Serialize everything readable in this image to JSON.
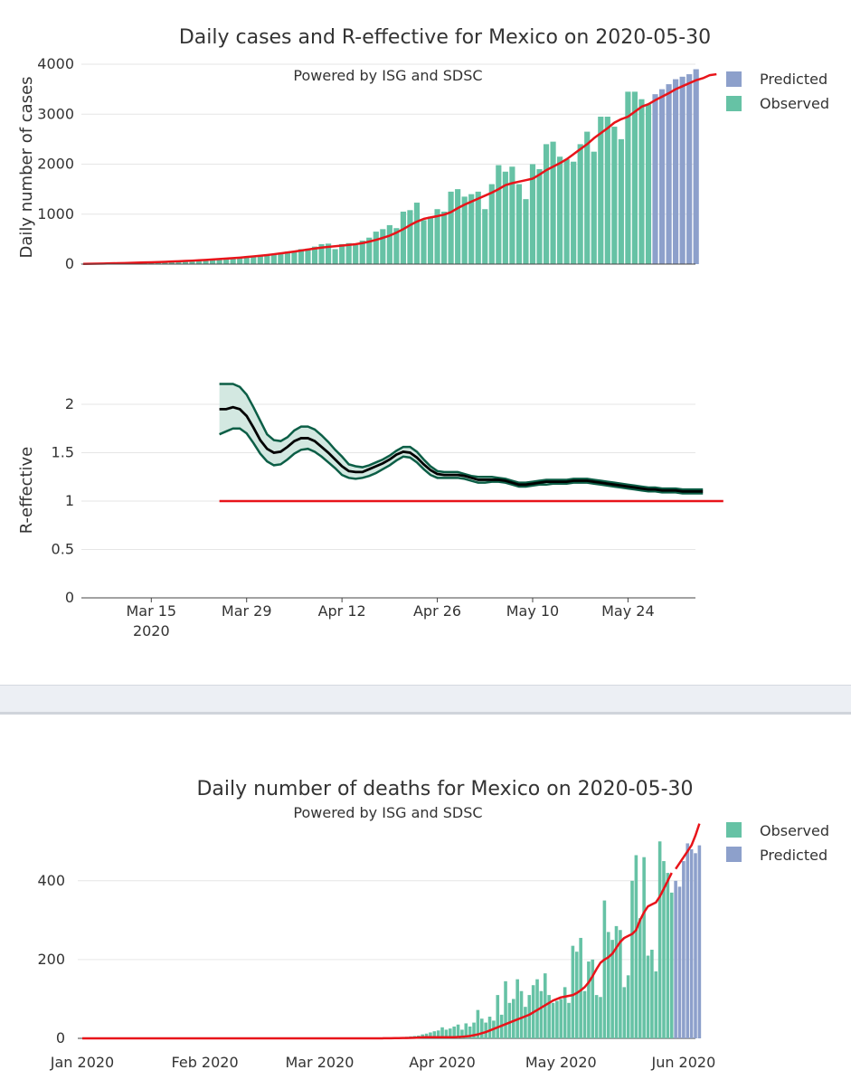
{
  "colors": {
    "observed": "#66c2a5",
    "predicted": "#8da0cb",
    "trend": "#e8141a",
    "r_line": "#000000",
    "r_band_edge": "#0c5e46",
    "r_band_fill": "#d3e8e1",
    "threshold": "#e8141a",
    "grid": "#e6e6e6"
  },
  "chart_data": [
    {
      "id": "cases",
      "type": "bar",
      "title": "Daily cases and R-effective for Mexico on 2020-05-30",
      "subtitle": "Powered by ISG and SDSC",
      "ylabel": "Daily number of cases",
      "xlabel": "",
      "ylim": [
        0,
        4000
      ],
      "yticks": [
        0,
        1000,
        2000,
        3000,
        4000
      ],
      "legend": [
        "Predicted",
        "Observed"
      ],
      "legend_position": "top-right",
      "x_start": "2020-03-05",
      "observed": [
        5,
        6,
        7,
        10,
        12,
        16,
        15,
        22,
        26,
        30,
        35,
        40,
        45,
        50,
        58,
        64,
        70,
        80,
        90,
        100,
        110,
        120,
        130,
        140,
        155,
        170,
        180,
        190,
        200,
        220,
        250,
        260,
        300,
        310,
        350,
        400,
        410,
        300,
        400,
        420,
        380,
        470,
        530,
        650,
        700,
        780,
        720,
        1050,
        1080,
        1230,
        880,
        950,
        1100,
        1050,
        1450,
        1500,
        1350,
        1400,
        1450,
        1100,
        1600,
        1980,
        1850,
        1950,
        1600,
        1300,
        2000,
        1900,
        2400,
        2450,
        2150,
        2100,
        2050,
        2400,
        2650,
        2250,
        2950,
        2950,
        2750,
        2500,
        3450,
        3450,
        3300,
        3200
      ],
      "predicted": [
        3400,
        3500,
        3600,
        3700,
        3750,
        3800,
        3900
      ],
      "trend": [
        5,
        7,
        9,
        12,
        15,
        18,
        21,
        25,
        29,
        33,
        37,
        41,
        46,
        51,
        57,
        63,
        69,
        76,
        84,
        92,
        101,
        110,
        120,
        130,
        142,
        155,
        168,
        182,
        198,
        215,
        233,
        252,
        272,
        292,
        312,
        330,
        345,
        358,
        371,
        384,
        398,
        420,
        450,
        485,
        525,
        570,
        630,
        700,
        780,
        850,
        905,
        935,
        960,
        990,
        1040,
        1120,
        1190,
        1250,
        1310,
        1370,
        1430,
        1500,
        1580,
        1620,
        1650,
        1680,
        1710,
        1790,
        1880,
        1950,
        2020,
        2100,
        2200,
        2300,
        2400,
        2520,
        2620,
        2720,
        2830,
        2900,
        2950,
        3050,
        3150,
        3200,
        3280,
        3350,
        3420,
        3500,
        3560,
        3620,
        3680,
        3720,
        3780,
        3800
      ]
    },
    {
      "id": "r_effective",
      "type": "line",
      "title": "",
      "ylabel": "R-effective",
      "xlabel": "",
      "ylim": [
        0,
        2.3
      ],
      "yticks": [
        0,
        0.5,
        1,
        1.5,
        2
      ],
      "ytick_labels": [
        "0",
        "0.5",
        "1",
        "1.5",
        "2"
      ],
      "xticks": [
        "Mar 15",
        "Mar 29",
        "Apr 12",
        "Apr 26",
        "May 10",
        "May 24"
      ],
      "xtick_sublabel": "2020",
      "x_start": "2020-03-25",
      "threshold": 1,
      "threshold_range_days": [
        0,
        74
      ],
      "mean": [
        1.95,
        1.95,
        1.97,
        1.95,
        1.88,
        1.76,
        1.63,
        1.54,
        1.5,
        1.51,
        1.56,
        1.62,
        1.65,
        1.65,
        1.62,
        1.56,
        1.5,
        1.43,
        1.36,
        1.31,
        1.3,
        1.3,
        1.33,
        1.36,
        1.39,
        1.43,
        1.48,
        1.51,
        1.5,
        1.45,
        1.38,
        1.32,
        1.28,
        1.27,
        1.27,
        1.27,
        1.26,
        1.24,
        1.22,
        1.22,
        1.22,
        1.22,
        1.21,
        1.19,
        1.17,
        1.17,
        1.18,
        1.19,
        1.2,
        1.2,
        1.2,
        1.2,
        1.21,
        1.21,
        1.21,
        1.2,
        1.19,
        1.18,
        1.17,
        1.16,
        1.15,
        1.14,
        1.13,
        1.12,
        1.12,
        1.11,
        1.11,
        1.11,
        1.1,
        1.1,
        1.1,
        1.1
      ],
      "upper": [
        2.21,
        2.21,
        2.21,
        2.18,
        2.1,
        1.97,
        1.83,
        1.69,
        1.63,
        1.62,
        1.66,
        1.73,
        1.77,
        1.77,
        1.74,
        1.68,
        1.61,
        1.53,
        1.46,
        1.38,
        1.36,
        1.35,
        1.37,
        1.4,
        1.43,
        1.47,
        1.52,
        1.56,
        1.56,
        1.51,
        1.43,
        1.36,
        1.31,
        1.3,
        1.3,
        1.3,
        1.28,
        1.26,
        1.25,
        1.25,
        1.25,
        1.24,
        1.23,
        1.21,
        1.19,
        1.19,
        1.2,
        1.21,
        1.22,
        1.22,
        1.22,
        1.22,
        1.23,
        1.23,
        1.23,
        1.22,
        1.21,
        1.2,
        1.19,
        1.18,
        1.17,
        1.16,
        1.15,
        1.14,
        1.14,
        1.13,
        1.13,
        1.13,
        1.12,
        1.12,
        1.12,
        1.12
      ],
      "lower": [
        1.69,
        1.72,
        1.75,
        1.75,
        1.7,
        1.6,
        1.49,
        1.41,
        1.37,
        1.38,
        1.43,
        1.49,
        1.53,
        1.54,
        1.51,
        1.46,
        1.4,
        1.34,
        1.27,
        1.24,
        1.23,
        1.24,
        1.26,
        1.29,
        1.33,
        1.37,
        1.42,
        1.46,
        1.45,
        1.4,
        1.33,
        1.27,
        1.24,
        1.24,
        1.24,
        1.24,
        1.23,
        1.21,
        1.19,
        1.19,
        1.2,
        1.2,
        1.19,
        1.17,
        1.15,
        1.15,
        1.16,
        1.17,
        1.17,
        1.18,
        1.18,
        1.18,
        1.19,
        1.19,
        1.19,
        1.18,
        1.17,
        1.16,
        1.15,
        1.14,
        1.13,
        1.12,
        1.11,
        1.1,
        1.1,
        1.09,
        1.09,
        1.09,
        1.08,
        1.08,
        1.08,
        1.08
      ]
    },
    {
      "id": "deaths",
      "type": "bar",
      "title": "Daily number of deaths for Mexico on 2020-05-30",
      "subtitle": "Powered by ISG and SDSC",
      "ylabel": "",
      "xlabel": "",
      "ylim": [
        0,
        560
      ],
      "yticks": [
        0,
        200,
        400
      ],
      "xticks": [
        "Jan 2020",
        "Feb 2020",
        "Mar 2020",
        "Apr 2020",
        "May 2020",
        "Jun 2020"
      ],
      "legend": [
        "Observed",
        "Predicted"
      ],
      "legend_position": "top-right",
      "x_start": "2020-03-18",
      "observed": [
        1,
        2,
        1,
        3,
        2,
        4,
        5,
        6,
        7,
        10,
        12,
        15,
        18,
        20,
        28,
        22,
        25,
        30,
        35,
        22,
        38,
        30,
        40,
        72,
        50,
        40,
        55,
        45,
        110,
        60,
        145,
        90,
        100,
        150,
        120,
        80,
        110,
        135,
        150,
        120,
        165,
        110,
        90,
        95,
        100,
        130,
        90,
        235,
        220,
        255,
        120,
        195,
        200,
        110,
        105,
        350,
        270,
        250,
        285,
        275,
        130,
        160,
        400,
        465,
        305,
        460,
        210,
        225,
        170,
        500,
        450,
        420,
        370
      ],
      "predicted": [
        400,
        385,
        450,
        495,
        480,
        470,
        490
      ],
      "trend_observed": [
        0.2,
        0.3,
        0.4,
        0.5,
        0.6,
        0.8,
        1,
        1.2,
        1.5,
        2,
        2.5,
        3,
        3,
        3,
        3,
        3,
        3,
        3,
        3,
        3.5,
        4,
        5,
        6,
        8,
        10,
        13,
        16,
        20,
        24,
        28,
        32,
        36,
        40,
        44,
        48,
        52,
        56,
        60,
        66,
        72,
        78,
        84,
        90,
        96,
        100,
        104,
        106,
        108,
        110,
        115,
        122,
        130,
        142,
        158,
        176,
        192,
        200,
        206,
        215,
        230,
        245,
        255,
        260,
        265,
        275,
        300,
        320,
        335,
        340,
        345,
        360,
        380,
        400,
        420
      ],
      "trend_predicted": [
        430,
        445,
        460,
        475,
        490,
        515,
        545
      ]
    }
  ]
}
